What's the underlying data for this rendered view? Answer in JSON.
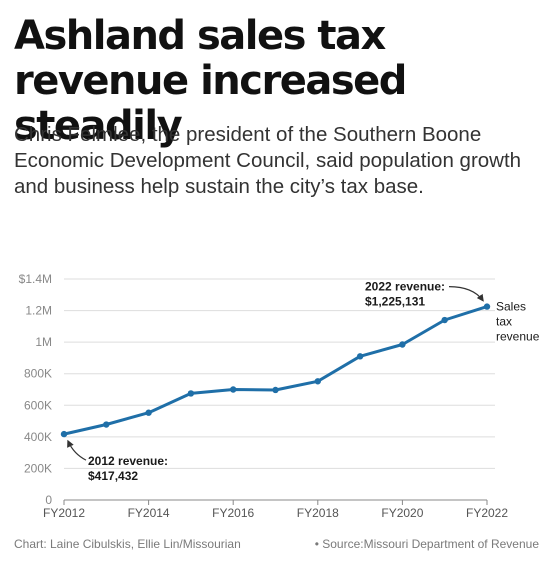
{
  "header": {
    "title": "Ashland sales tax revenue increased steadily",
    "subtitle": "Chris Felmlee, the president of the Southern Boone Economic Development Council, said population growth and business help sustain the city’s tax base."
  },
  "footer": {
    "credit": "Chart: Laine Cibulskis, Ellie Lin/Missourian",
    "source": "• Source:Missouri Department of Revenue"
  },
  "colors": {
    "line": "#1f6fa8",
    "grid": "#dddddd",
    "axis": "#888888",
    "text": "#1a1a1a"
  },
  "chart_data": {
    "type": "line",
    "x": [
      2012,
      2013,
      2014,
      2015,
      2016,
      2017,
      2018,
      2019,
      2020,
      2021,
      2022
    ],
    "series": [
      {
        "name": "Sales tax revenue",
        "values": [
          417432,
          478000,
          553000,
          675000,
          700000,
          697000,
          752000,
          910000,
          985000,
          1140000,
          1225131
        ]
      }
    ],
    "ylim": [
      0,
      1400000
    ],
    "yticks": [
      0,
      200000,
      400000,
      600000,
      800000,
      1000000,
      1200000,
      1400000
    ],
    "ytick_labels": [
      "0",
      "200K",
      "400K",
      "600K",
      "800K",
      "1M",
      "1.2M",
      "$1.4M"
    ],
    "xticks": [
      2012,
      2014,
      2016,
      2018,
      2020,
      2022
    ],
    "xtick_labels": [
      "FY2012",
      "FY2014",
      "FY2016",
      "FY2018",
      "FY2020",
      "FY2022"
    ],
    "grid": true,
    "series_label_lines": [
      "Sales",
      "tax",
      "revenue"
    ],
    "annotations": [
      {
        "x": 2012,
        "value": 417432,
        "lines": [
          "2012 revenue:",
          "$417,432"
        ]
      },
      {
        "x": 2022,
        "value": 1225131,
        "lines": [
          "2022 revenue:",
          "$1,225,131"
        ]
      }
    ]
  }
}
